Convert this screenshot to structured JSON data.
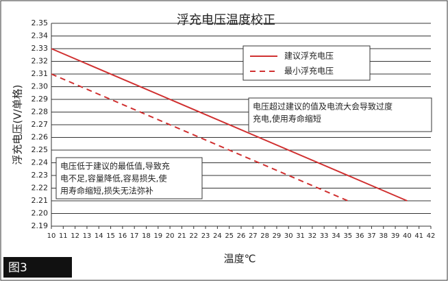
{
  "chart_data": {
    "type": "line",
    "title": "浮充电压温度校正",
    "xlabel": "温度℃",
    "ylabel": "浮充电压(V/单格)",
    "series": [
      {
        "name": "建议浮充电压",
        "color": "#d03030",
        "style": "solid",
        "x": [
          10,
          40
        ],
        "values": [
          2.33,
          2.21
        ]
      },
      {
        "name": "最小浮充电压",
        "color": "#d03030",
        "style": "dashed",
        "x": [
          10,
          35
        ],
        "values": [
          2.31,
          2.21
        ]
      }
    ],
    "xlim": [
      10,
      42
    ],
    "xticks": [
      10,
      11,
      12,
      13,
      14,
      15,
      16,
      17,
      18,
      19,
      20,
      21,
      22,
      23,
      24,
      25,
      26,
      27,
      28,
      29,
      30,
      31,
      32,
      33,
      34,
      35,
      36,
      37,
      38,
      39,
      40,
      41,
      42
    ],
    "ylim": [
      2.19,
      2.35
    ],
    "yticks": [
      2.19,
      {
        "value": 2.2,
        "label": "2.20"
      },
      2.21,
      2.22,
      2.23,
      2.24,
      2.25,
      2.26,
      2.27,
      2.28,
      2.29,
      {
        "value": 2.3,
        "label": "2.30"
      },
      2.31,
      2.32,
      2.33,
      2.34,
      2.35
    ],
    "grid": true,
    "annotations": [
      [
        "电压超过建议的值及电流大会导致过度",
        "充电,使用寿命缩短"
      ],
      [
        "电压低于建议的最低值,导致充",
        "电不足,容量降低,容易损失,使",
        "用寿命缩短,损失无法弥补"
      ]
    ],
    "figure_label": "图3"
  }
}
